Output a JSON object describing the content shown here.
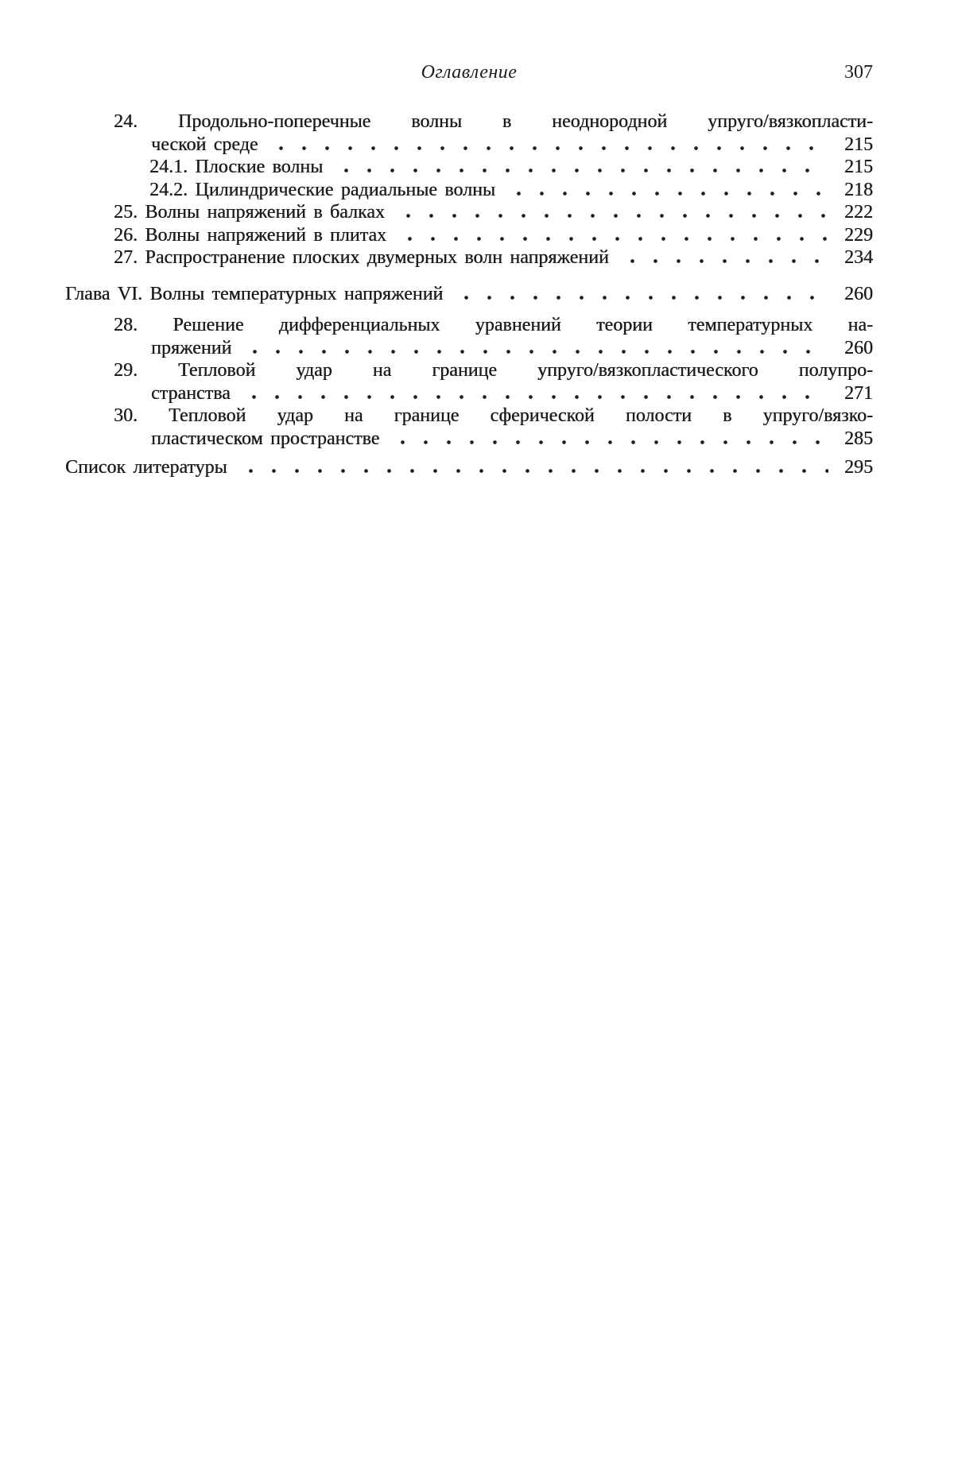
{
  "document": {
    "paper_color": "#ffffff",
    "ink_color": "#1c1c1a",
    "header": {
      "title": "Оглавление",
      "page_number": "307"
    },
    "toc_lines": [
      {
        "text": "24. Продольно-поперечные волны в неоднородной упруго/вязкопласти-"
      },
      {
        "text": "ческой среде",
        "page": "215"
      },
      {
        "text": "24.1. Плоские волны",
        "page": "215"
      },
      {
        "text": "24.2. Цилиндрические радиальные волны",
        "page": "218"
      },
      {
        "text": "25. Волны напряжений в балках",
        "page": "222"
      },
      {
        "text": "26. Волны напряжений в плитах",
        "page": "229"
      },
      {
        "text": "27. Распространение плоских двумерных волн напряжений",
        "page": "234"
      },
      {
        "text": "Глава VI. Волны температурных напряжений",
        "page": "260"
      },
      {
        "text": "28. Решение дифференциальных уравнений теории температурных на-"
      },
      {
        "text": "пряжений",
        "page": "260"
      },
      {
        "text": "29. Тепловой удар на границе упруго/вязкопластического полупро-"
      },
      {
        "text": "странства",
        "page": "271"
      },
      {
        "text": "30. Тепловой удар на границе сферической полости в упруго/вязко-"
      },
      {
        "text": "пластическом пространстве",
        "page": "285"
      },
      {
        "text": "Список литературы",
        "page": "295"
      }
    ]
  }
}
